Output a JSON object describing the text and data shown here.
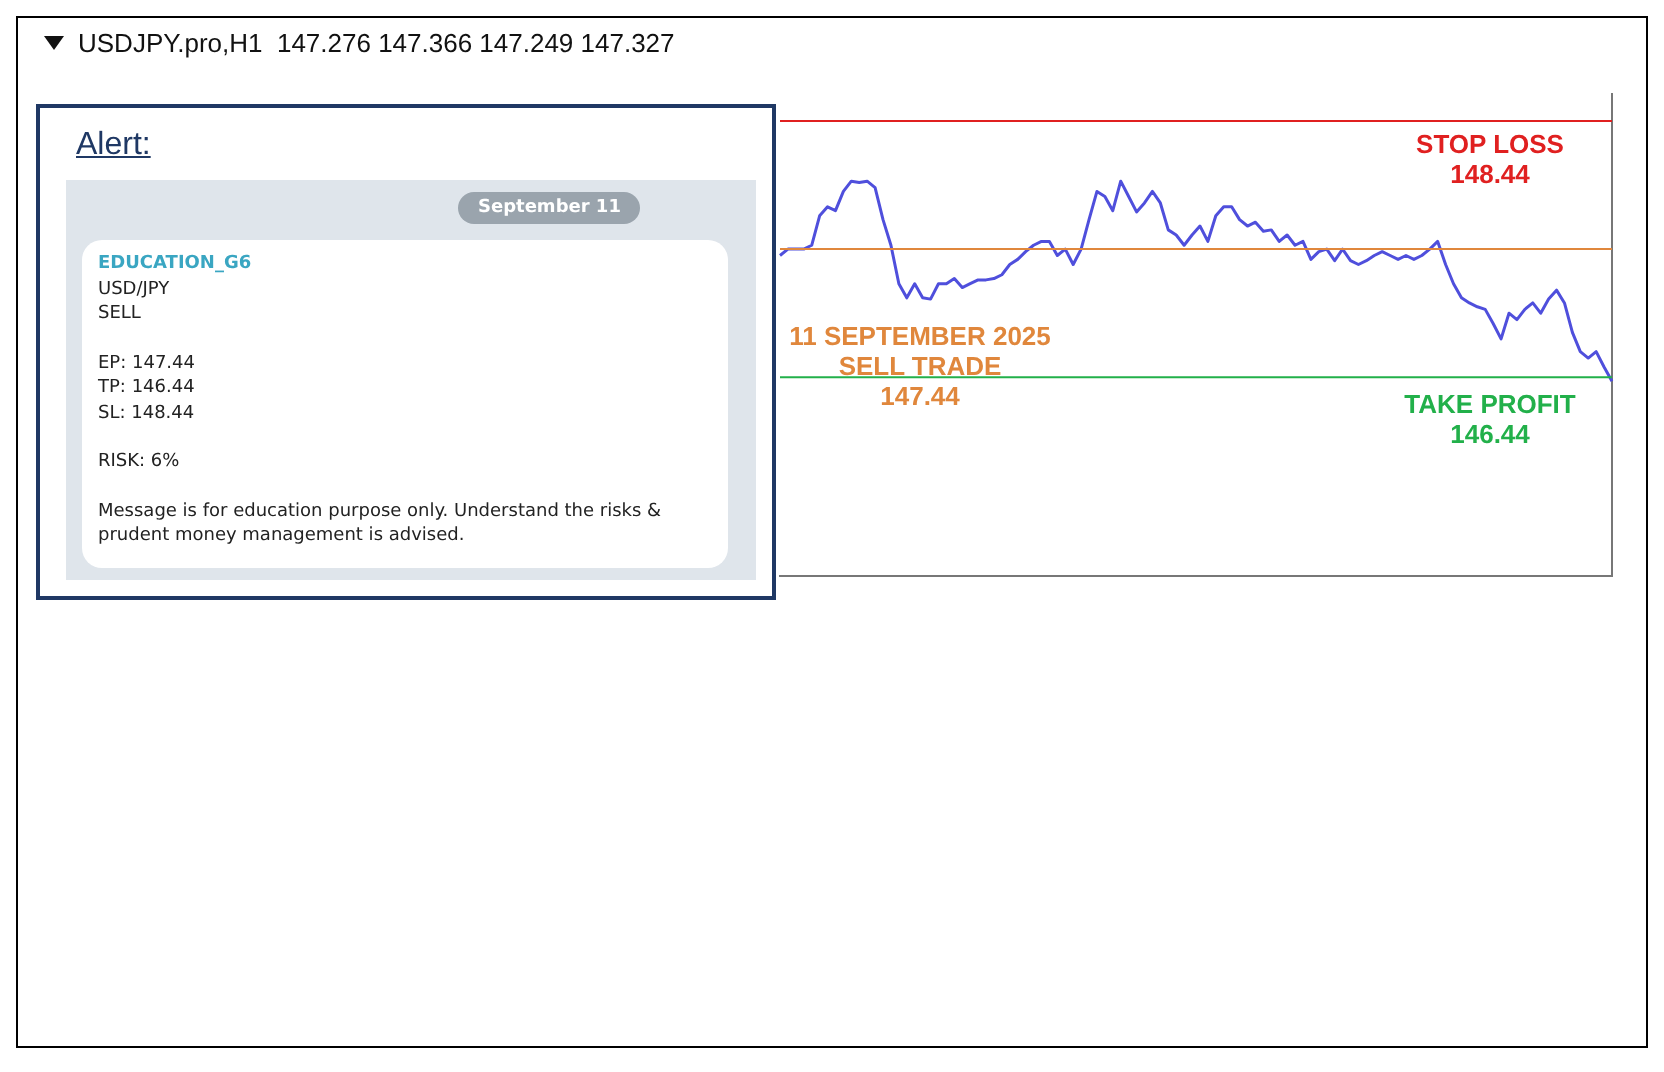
{
  "chart_data": [
    {
      "type": "line",
      "title": "USDJPY.pro,H1  147.276 147.366 147.249 147.327",
      "categories": [
        null,
        null,
        null,
        null,
        null,
        null,
        null,
        null,
        null,
        null,
        null,
        null,
        null,
        null,
        null,
        null,
        null,
        null,
        null,
        null,
        null,
        null,
        null,
        null,
        null,
        null,
        null,
        null,
        null,
        null,
        null,
        null,
        null,
        null,
        null,
        null,
        null,
        null,
        null,
        null,
        null,
        null,
        null,
        null,
        null,
        null,
        null,
        null,
        null,
        null,
        null,
        null,
        null,
        null,
        null,
        null,
        null,
        null,
        null,
        null,
        null,
        null,
        null,
        null,
        null,
        null,
        null,
        null,
        null,
        null,
        null,
        null,
        null,
        null,
        null,
        null,
        null,
        null,
        null,
        null,
        null,
        null,
        null,
        null,
        null,
        null,
        null,
        null,
        null,
        null,
        null,
        null,
        null,
        null,
        null,
        null,
        null,
        null,
        null,
        null,
        null,
        null,
        null,
        null,
        null,
        null
      ],
      "series": [
        {
          "color": "#4f4fdc",
          "values": [
            147.39,
            147.44,
            147.44,
            147.44,
            147.47,
            147.7,
            147.77,
            147.74,
            147.89,
            147.97,
            147.96,
            147.97,
            147.92,
            147.67,
            147.47,
            147.17,
            147.06,
            147.17,
            147.06,
            147.05,
            147.17,
            147.17,
            147.21,
            147.14,
            147.17,
            147.2,
            147.2,
            147.21,
            147.24,
            147.32,
            147.36,
            147.42,
            147.47,
            147.5,
            147.5,
            147.39,
            147.44,
            147.32,
            147.44,
            147.67,
            147.89,
            147.85,
            147.74,
            147.97,
            147.85,
            147.73,
            147.8,
            147.89,
            147.8,
            147.59,
            147.55,
            147.47,
            147.55,
            147.62,
            147.5,
            147.7,
            147.77,
            147.77,
            147.67,
            147.62,
            147.65,
            147.58,
            147.59,
            147.5,
            147.55,
            147.47,
            147.5,
            147.36,
            147.42,
            147.44,
            147.35,
            147.44,
            147.35,
            147.32,
            147.35,
            147.39,
            147.42,
            147.39,
            147.36,
            147.39,
            147.36,
            147.39,
            147.44,
            147.5,
            147.32,
            147.17,
            147.06,
            147.02,
            146.99,
            146.97,
            146.86,
            146.74,
            146.94,
            146.89,
            146.97,
            147.02,
            146.94,
            147.05,
            147.12,
            147.02,
            146.79,
            146.64,
            146.59,
            146.64,
            146.52,
            146.41
          ]
        }
      ],
      "ylim": [
        144.89,
        148.65
      ],
      "tick_labels": false,
      "grid": false,
      "legend": false,
      "marker": "none",
      "ref_lines": [
        {
          "axis": "y",
          "value": 148.44,
          "label": "STOP LOSS\n148.44",
          "color": "#e02020"
        },
        {
          "axis": "y",
          "value": 147.44,
          "label": "11 SEPTEMBER 2025\nSELL TRADE\n147.44",
          "color": "#e0873c"
        },
        {
          "axis": "y",
          "value": 146.44,
          "label": "TAKE PROFIT\n146.44",
          "color": "#22b04a"
        }
      ]
    },
    {
      "type": "other",
      "title": "Alert:",
      "annotations": [
        "September 11",
        "EDUCATION_G6",
        "USD/JPY",
        "SELL",
        "EP: 147.44",
        "TP: 146.44",
        "SL: 148.44",
        "RISK: 6%",
        "Message is for education purpose only. Understand the risks & prudent money management is advised."
      ]
    }
  ]
}
